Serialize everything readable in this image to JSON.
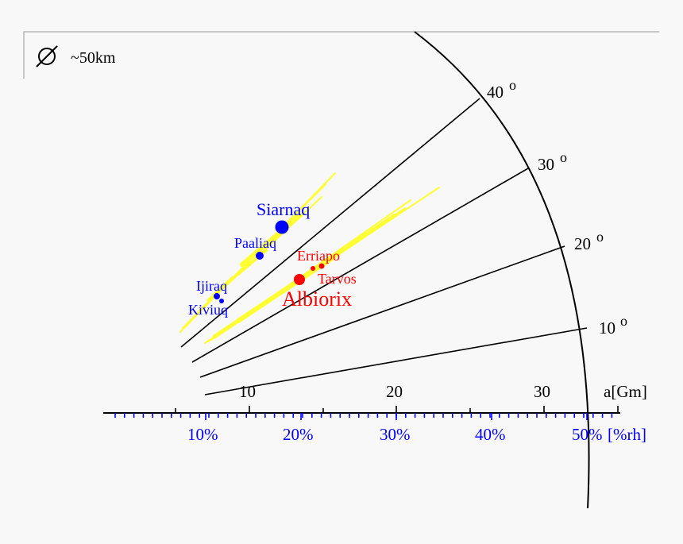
{
  "legend": {
    "symbol": "∅",
    "size_text": "~50km"
  },
  "inclination_labels": [
    {
      "text": "10",
      "unit": "o"
    },
    {
      "text": "20",
      "unit": "o"
    },
    {
      "text": "30",
      "unit": "o"
    },
    {
      "text": "40",
      "unit": "o"
    }
  ],
  "distance_axis": {
    "ticks": [
      "10",
      "20",
      "30"
    ],
    "unit_label": "a[Gm]"
  },
  "hill_axis": {
    "ticks": [
      "10%",
      "20%",
      "30%",
      "40%"
    ],
    "last_tick": "50%",
    "unit_label": "[%rh]"
  },
  "moons": {
    "siarnaq": "Siarnaq",
    "paaliaq": "Paaliaq",
    "ijiraq": "Ijiraq",
    "kiviuq": "Kiviuq",
    "erriapo": "Erriapo",
    "tarvos": "Tarvos",
    "albiorix": "Albiorix"
  },
  "colors": {
    "gallic_group": "#ff0000",
    "inuit_group": "#0000ff",
    "orbit_range": "#ffff33",
    "axis": "#000000"
  }
}
